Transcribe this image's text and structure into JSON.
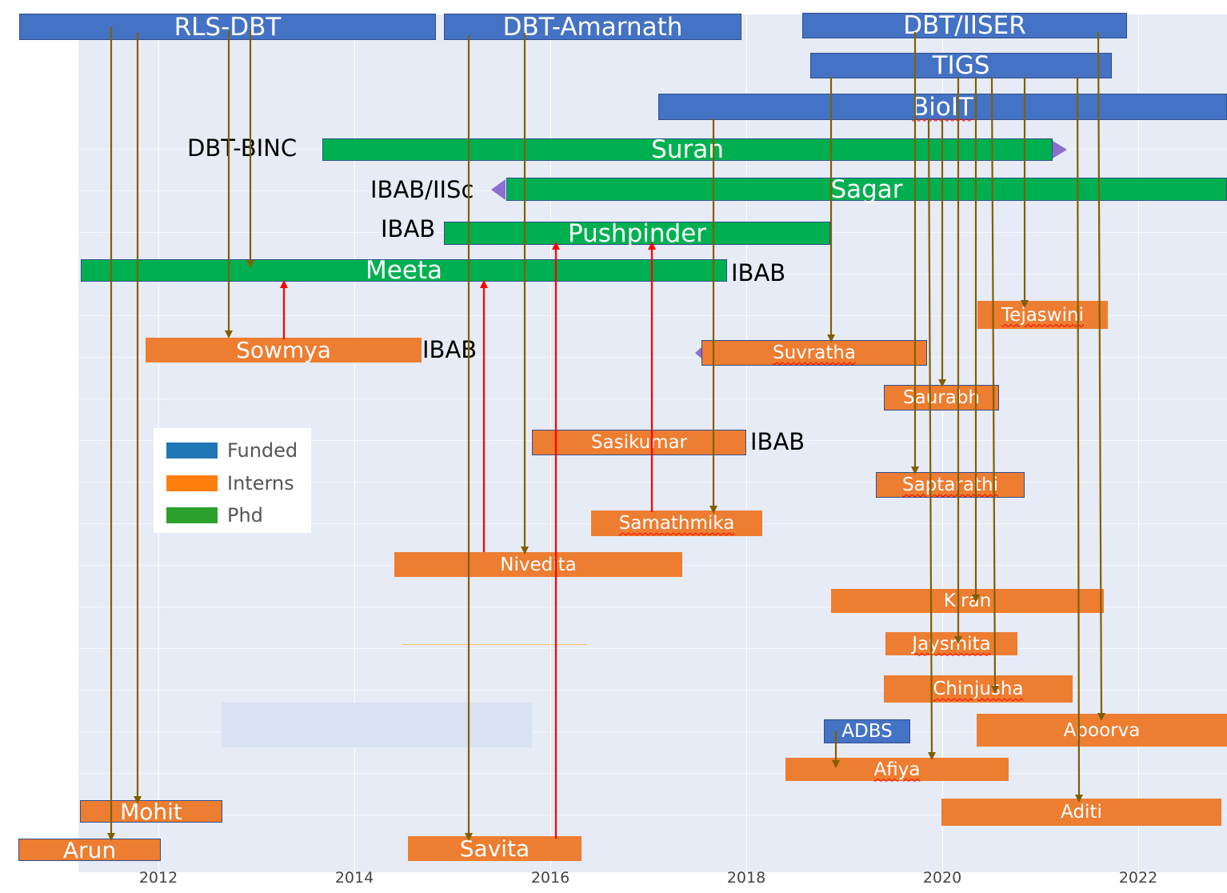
{
  "axis": {
    "ticks": [
      "2012",
      "2014",
      "2016",
      "2018",
      "2020",
      "2022"
    ]
  },
  "legend": [
    {
      "label": "Funded",
      "color": "#1f77b4"
    },
    {
      "label": "Interns",
      "color": "#ff7f0e"
    },
    {
      "label": "Phd",
      "color": "#2ca02c"
    }
  ],
  "funded": {
    "rls_dbt": "RLS-DBT",
    "dbt_amarnath": "DBT-Amarnath",
    "dbt_iiser": "DBT/IISER",
    "tigs": "TIGS",
    "bioit": "BioIT",
    "adbs": "ADBS"
  },
  "phd": {
    "suran": "Suran",
    "sagar": "Sagar",
    "pushpinder": "Pushpinder",
    "meeta": "Meeta"
  },
  "interns": {
    "sowmya": "Sowmya",
    "tejaswini": "Tejaswini",
    "suvratha": "Suvratha",
    "saurabh": "Saurabh",
    "sasikumar": "Sasikumar",
    "saptarathi": "Saptarathi",
    "samathmika": "Samathmika",
    "nivedita": "Nivedita",
    "kiran": "Kiran",
    "jaysmita": "Jaysmita",
    "chinjusha": "Chinjusha",
    "apoorva": "Apoorva",
    "afiya": "Afiya",
    "aditi": "Aditi",
    "mohit": "Mohit",
    "arun": "Arun",
    "savita": "Savita"
  },
  "side_labels": {
    "dbt_binc": "DBT-BINC",
    "ibab_iisc": "IBAB/IISc",
    "ibab_pushpinder": "IBAB",
    "ibab_meeta": "IBAB",
    "ibab_sowmya": "IBAB",
    "ibab_sasikumar": "IBAB"
  },
  "colors": {
    "funded_bar": "#4472c4",
    "phd_bar": "#00b050",
    "intern_bar": "#ed7d31",
    "funding_arrow": "#7f6000",
    "mentor_arrow": "#ff0000",
    "plot_bg": "#e6ebf5"
  }
}
